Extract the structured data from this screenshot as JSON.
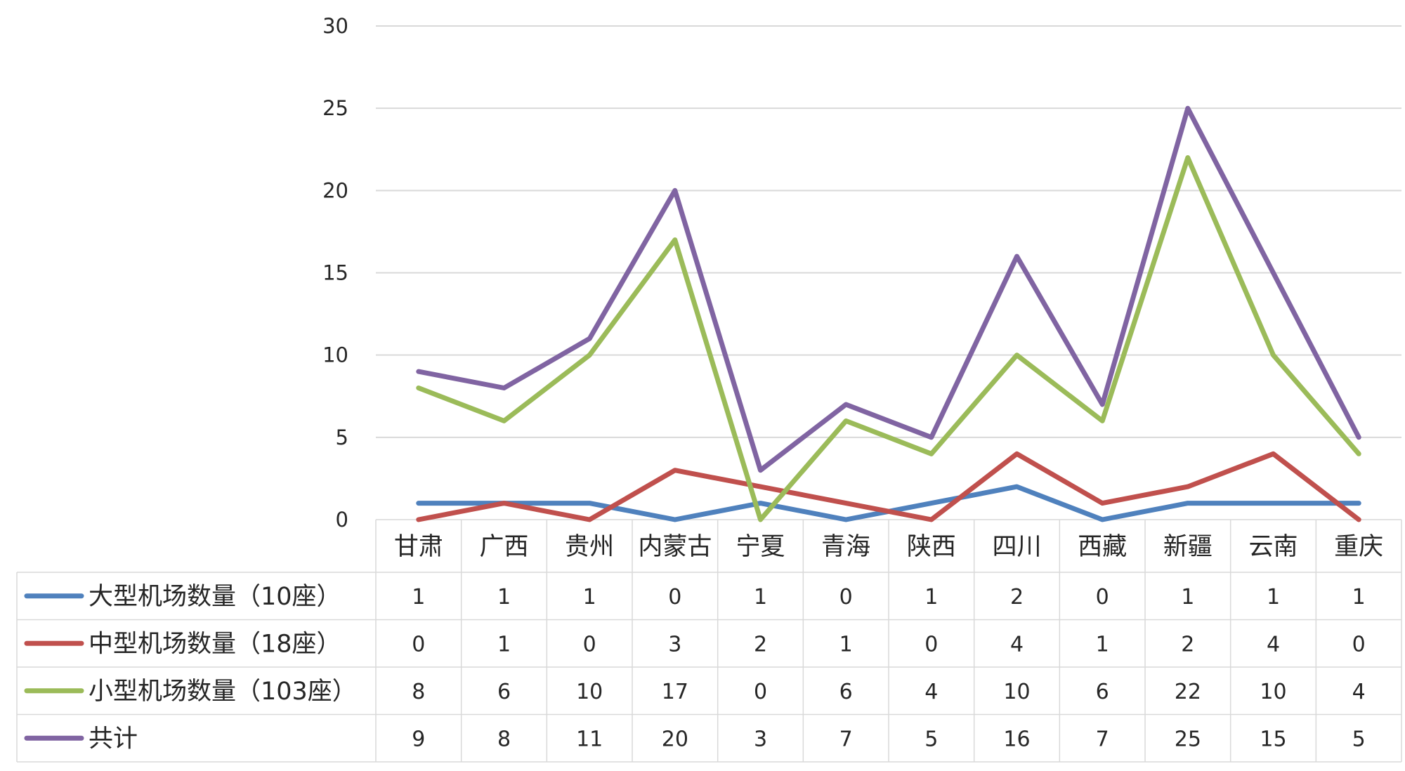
{
  "chart_data": {
    "type": "line",
    "categories": [
      "甘肃",
      "广西",
      "贵州",
      "内蒙古",
      "宁夏",
      "青海",
      "陕西",
      "四川",
      "西藏",
      "新疆",
      "云南",
      "重庆"
    ],
    "ylim": [
      0,
      30
    ],
    "yticks": [
      0,
      5,
      10,
      15,
      20,
      25,
      30
    ],
    "grid": true,
    "legend": "data-table-left",
    "series": [
      {
        "name": "大型机场数量（10座）",
        "color": "#4f81bd",
        "values": [
          1,
          1,
          1,
          0,
          1,
          0,
          1,
          2,
          0,
          1,
          1,
          1
        ]
      },
      {
        "name": "中型机场数量（18座）",
        "color": "#c0504d",
        "values": [
          0,
          1,
          0,
          3,
          2,
          1,
          0,
          4,
          1,
          2,
          4,
          0
        ]
      },
      {
        "name": "小型机场数量（103座）",
        "color": "#9bbb59",
        "values": [
          8,
          6,
          10,
          17,
          0,
          6,
          4,
          10,
          6,
          22,
          10,
          4
        ]
      },
      {
        "name": "共计",
        "color": "#8064a2",
        "values": [
          9,
          8,
          11,
          20,
          3,
          7,
          5,
          16,
          7,
          25,
          15,
          5
        ]
      }
    ]
  }
}
